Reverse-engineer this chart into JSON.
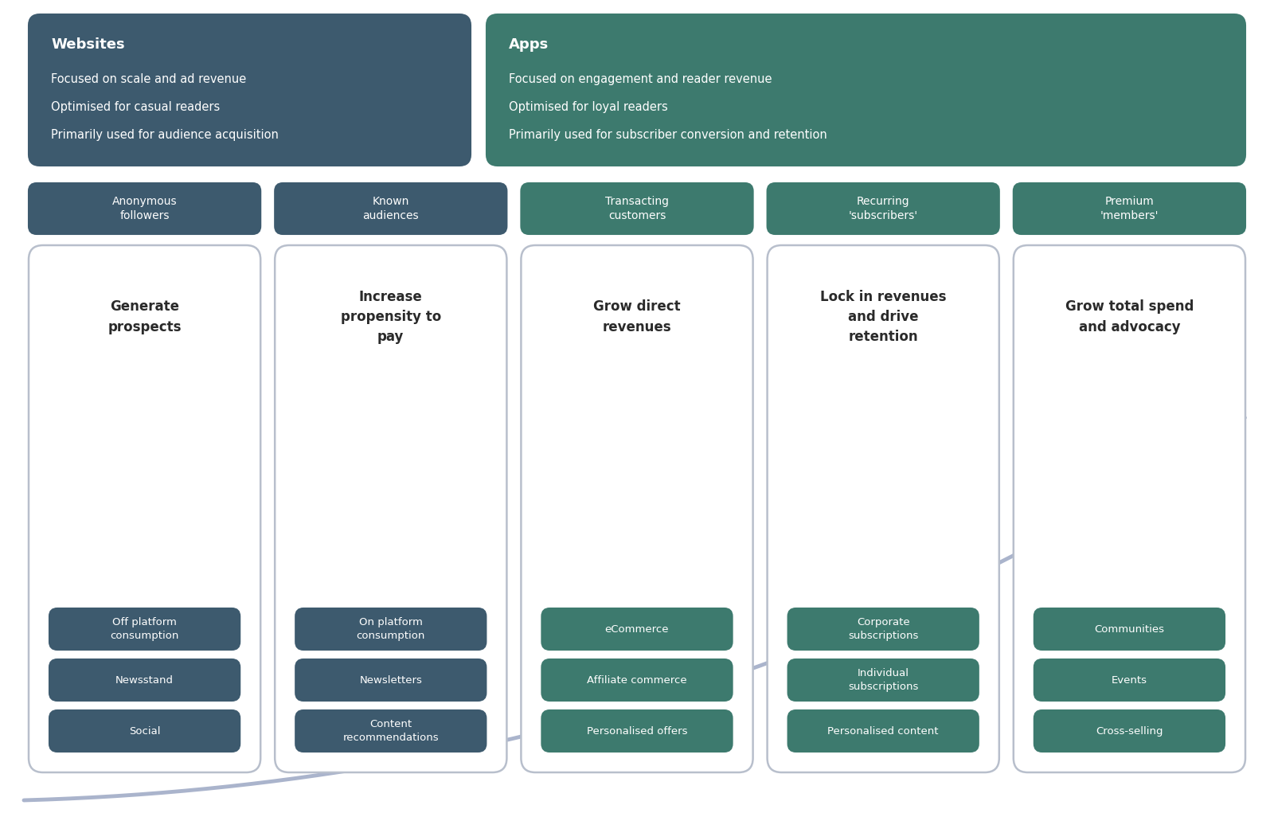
{
  "bg_color": "#ffffff",
  "dark_blue": "#3d5a6e",
  "dark_green": "#3d7a6e",
  "white": "#ffffff",
  "black": "#2a2a2a",
  "arrow_color": "#aab4cc",
  "websites_box": {
    "title": "Websites",
    "lines": [
      "Focused on scale and ad revenue",
      "Optimised for casual readers",
      "Primarily used for audience acquisition"
    ],
    "color": "#3d5a6e"
  },
  "apps_box": {
    "title": "Apps",
    "lines": [
      "Focused on engagement and reader revenue",
      "Optimised for loyal readers",
      "Primarily used for subscriber conversion and retention"
    ],
    "color": "#3d7a6e"
  },
  "columns": [
    {
      "header": "Anonymous\nfollowers",
      "header_color": "#3d5a6e",
      "title": "Generate\nprospects",
      "items": [
        "Off platform\nconsumption",
        "Newsstand",
        "Social"
      ],
      "item_color": "#3d5a6e"
    },
    {
      "header": "Known\naudiences",
      "header_color": "#3d5a6e",
      "title": "Increase\npropensity to\npay",
      "items": [
        "On platform\nconsumption",
        "Newsletters",
        "Content\nrecommendations"
      ],
      "item_color": "#3d5a6e"
    },
    {
      "header": "Transacting\ncustomers",
      "header_color": "#3d7a6e",
      "title": "Grow direct\nrevenues",
      "items": [
        "eCommerce",
        "Affiliate commerce",
        "Personalised offers"
      ],
      "item_color": "#3d7a6e"
    },
    {
      "header": "Recurring\n'subscribers'",
      "header_color": "#3d7a6e",
      "title": "Lock in revenues\nand drive\nretention",
      "items": [
        "Corporate\nsubscriptions",
        "Individual\nsubscriptions",
        "Personalised content"
      ],
      "item_color": "#3d7a6e"
    },
    {
      "header": "Premium\n'members'",
      "header_color": "#3d7a6e",
      "title": "Grow total spend\nand advocacy",
      "items": [
        "Communities",
        "Events",
        "Cross-selling"
      ],
      "item_color": "#3d7a6e"
    }
  ]
}
